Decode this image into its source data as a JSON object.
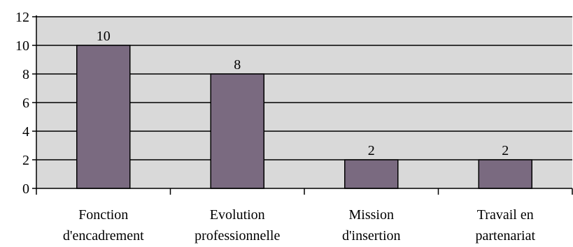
{
  "chart_data": {
    "type": "bar",
    "title": "",
    "xlabel": "",
    "ylabel": "",
    "ylim": [
      0,
      12
    ],
    "yticks": [
      0,
      2,
      4,
      6,
      8,
      10,
      12
    ],
    "grid": true,
    "legend": "none",
    "categories": [
      [
        "Fonction",
        "d'encadrement"
      ],
      [
        "Evolution",
        "professionnelle"
      ],
      [
        "Mission",
        "d'insertion"
      ],
      [
        "Travail en",
        "partenariat"
      ]
    ],
    "values": [
      10,
      8,
      2,
      2
    ],
    "colors": {
      "bar": "#7a6a80",
      "bar_stroke": "#000000",
      "plot_background": "#d9d9d9",
      "grid": "#000000",
      "axis": "#000000"
    }
  }
}
